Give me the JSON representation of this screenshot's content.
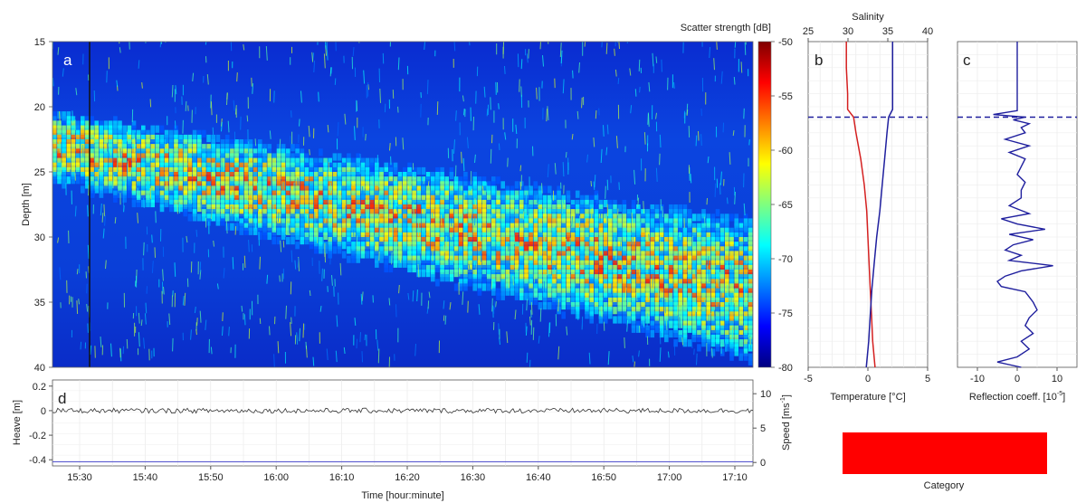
{
  "colors": {
    "colormap": [
      "#00007f",
      "#0000ff",
      "#007fff",
      "#00ffff",
      "#7fff7f",
      "#ffff00",
      "#ff7f00",
      "#ff0000",
      "#7f0000"
    ],
    "temperature": "#d42020",
    "salinity": "#1f1f9e",
    "reflection": "#1f1f9e",
    "thermocline": "#1f1f9e",
    "heave": "#333333",
    "speed": "#5a5ad0",
    "category_bar": "#ff0000"
  },
  "chart_data": [
    {
      "id": "a",
      "type": "heatmap",
      "panel_label": "a",
      "ylabel": "Depth [m]",
      "ylim": [
        15,
        40
      ],
      "yticks": [
        "15",
        "20",
        "25",
        "30",
        "35",
        "40"
      ],
      "colorbar": {
        "label": "Scatter strength [dB]",
        "range": [
          -80,
          -50
        ],
        "ticks": [
          "-50",
          "-55",
          "-60",
          "-65",
          "-70",
          "-75",
          "-80"
        ]
      },
      "description_values": {
        "scattering_layer_depth_start": [
          20,
          28
        ],
        "scattering_layer_depth_end": [
          26,
          40
        ],
        "max_strength_db": -55,
        "background_strength_db": -78
      }
    },
    {
      "id": "b",
      "type": "line",
      "panel_label": "b",
      "xlabel": "Temperature [°C]",
      "xlim": [
        -5,
        5
      ],
      "xticks": [
        "-5",
        "0",
        "5"
      ],
      "x2label": "Salinity",
      "x2lim": [
        25,
        40
      ],
      "x2ticks": [
        "25",
        "30",
        "35",
        "40"
      ],
      "ylim": [
        15,
        40
      ],
      "thermocline_depth": 20.8,
      "series": [
        {
          "name": "Temperature",
          "depth": [
            15,
            17,
            19,
            20.2,
            20.8,
            22,
            24,
            26,
            28,
            30,
            32,
            34,
            36,
            38,
            40
          ],
          "values": [
            -1.8,
            -1.8,
            -1.7,
            -1.7,
            -1.2,
            -1.0,
            -0.6,
            -0.3,
            -0.1,
            0.0,
            0.1,
            0.2,
            0.3,
            0.4,
            0.6
          ]
        },
        {
          "name": "Salinity",
          "depth": [
            15,
            17,
            19,
            20.2,
            20.8,
            22,
            24,
            26,
            28,
            30,
            32,
            34,
            36,
            38,
            40
          ],
          "values": [
            35.6,
            35.6,
            35.6,
            35.6,
            35.1,
            34.9,
            34.6,
            34.3,
            34.0,
            33.6,
            33.3,
            33.0,
            32.8,
            32.6,
            32.3
          ]
        }
      ]
    },
    {
      "id": "c",
      "type": "line",
      "panel_label": "c",
      "xlabel": "Reflection coeff. [10",
      "xlabel_exp": "-5",
      "xlabel_close": "]",
      "xlim": [
        -15,
        15
      ],
      "xticks": [
        "-10",
        "0",
        "10"
      ],
      "ylim": [
        15,
        40
      ],
      "thermocline_depth": 20.8,
      "series": [
        {
          "name": "Reflection coefficient",
          "depth": [
            15,
            20.3,
            20.6,
            20.8,
            21.0,
            21.3,
            21.6,
            22.0,
            22.5,
            23.0,
            23.5,
            24.0,
            24.6,
            25.2,
            25.8,
            26.4,
            27.0,
            27.6,
            28.2,
            28.6,
            29.0,
            29.4,
            29.8,
            30.2,
            30.6,
            31.0,
            31.4,
            31.8,
            32.2,
            32.6,
            33.0,
            33.4,
            33.8,
            34.2,
            34.6,
            35.0,
            35.6,
            36.2,
            36.8,
            37.4,
            38.0,
            38.6,
            39.2,
            39.6,
            40
          ],
          "values": [
            0,
            0,
            -6,
            2,
            -1,
            3,
            1,
            2,
            -3,
            3,
            -2,
            2,
            1,
            0,
            2,
            1,
            1,
            -2,
            3,
            -4,
            0,
            7,
            -2,
            4,
            -1,
            -3,
            1,
            -2,
            9,
            1,
            -3,
            -5,
            -4,
            2,
            3,
            4,
            5,
            3,
            2,
            4,
            1,
            3,
            0,
            -5,
            1
          ]
        }
      ]
    },
    {
      "id": "d",
      "type": "line",
      "panel_label": "d",
      "xlabel": "Time [hour:minute]",
      "xticks": [
        "15:30",
        "15:40",
        "15:50",
        "16:00",
        "16:10",
        "16:20",
        "16:30",
        "16:40",
        "16:50",
        "17:00",
        "17:10"
      ],
      "ylabel": "Heave [m]",
      "ylim": [
        -0.45,
        0.25
      ],
      "yticks": [
        "0.2",
        "0",
        "-0.2",
        "-0.4"
      ],
      "y2label": "Speed [ms",
      "y2label_exp": "-1",
      "y2label_close": "]",
      "y2lim": [
        -0.5,
        12
      ],
      "y2ticks": [
        "10",
        "5",
        "0"
      ],
      "series": [
        {
          "name": "Heave",
          "mean": 0.0,
          "amplitude": 0.02
        },
        {
          "name": "Speed",
          "mean": 0.1
        }
      ]
    }
  ],
  "legend": {
    "category_label": "Category"
  }
}
